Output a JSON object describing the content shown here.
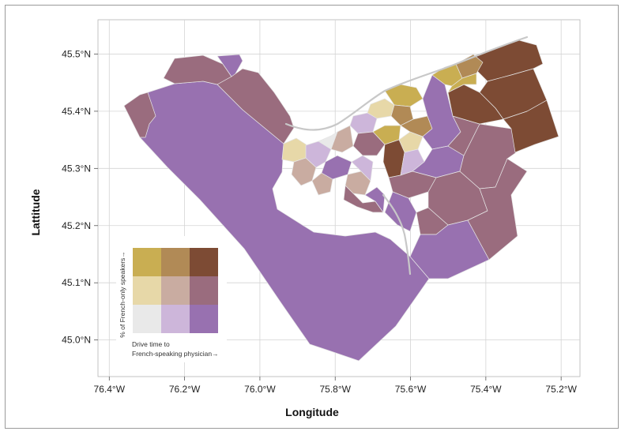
{
  "map": {
    "x_axis_title": "Longitude",
    "y_axis_title": "Lattitude",
    "x_ticks": [
      {
        "lon": -76.4,
        "label": "76.4°W"
      },
      {
        "lon": -76.2,
        "label": "76.2°W"
      },
      {
        "lon": -76.0,
        "label": "76.0°W"
      },
      {
        "lon": -75.8,
        "label": "75.8°W"
      },
      {
        "lon": -75.6,
        "label": "75.6°W"
      },
      {
        "lon": -75.4,
        "label": "75.4°W"
      },
      {
        "lon": -75.2,
        "label": "75.2°W"
      }
    ],
    "y_ticks": [
      {
        "lat": 45.5,
        "label": "45.5°N"
      },
      {
        "lat": 45.4,
        "label": "45.4°N"
      },
      {
        "lat": 45.3,
        "label": "45.3°N"
      },
      {
        "lat": 45.2,
        "label": "45.2°N"
      },
      {
        "lat": 45.1,
        "label": "45.1°N"
      },
      {
        "lat": 45.0,
        "label": "45.0°N"
      }
    ],
    "grid": true,
    "lon_range": [
      -76.43,
      -75.15
    ],
    "lat_range": [
      44.936,
      45.56
    ]
  },
  "legend": {
    "y_label": "% of French-only speakers→",
    "x_label_line1": "Drive time to",
    "x_label_line2": "French-speaking physician→",
    "colors": [
      [
        "#c9ae52",
        "#b18a56",
        "#7d4b34"
      ],
      [
        "#e7d8a8",
        "#c9aca1",
        "#9a6c7e"
      ],
      [
        "#e9e9e9",
        "#cdb6da",
        "#9871b0"
      ]
    ],
    "placement": "bottom-left"
  }
}
